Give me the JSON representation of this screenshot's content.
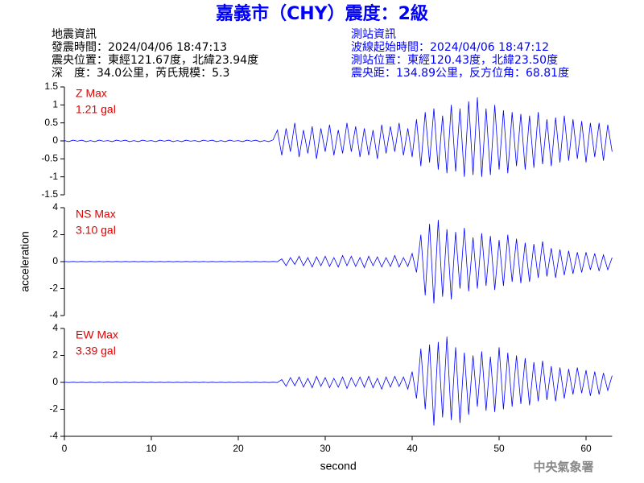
{
  "header": {
    "title": "嘉義市（CHY）震度：2級",
    "event": [
      "地震資訊",
      "發震時間：2024/04/06 18:47:13",
      "震央位置：東經121.67度，北緯23.94度",
      "深　度：34.0公里，芮氏規模：5.3"
    ],
    "station": [
      "測站資訊",
      "波線起始時間：2024/04/06 18:47:12",
      "測站位置：東經120.43度，北緯23.50度",
      "震央距：134.89公里，反方位角：68.81度"
    ],
    "footer": "中央氣象署"
  },
  "chart_data": [
    {
      "type": "line",
      "annotations": [
        "Z Max",
        "1.21 gal"
      ],
      "color": "#0000ff",
      "xlim": [
        0,
        63
      ],
      "ylim": [
        -1.5,
        1.5
      ],
      "yticks": [
        1.5,
        1,
        0.5,
        0,
        -0.5,
        -1,
        -1.5
      ],
      "x": [
        0,
        0.5,
        1,
        1.5,
        2,
        2.5,
        3,
        3.5,
        4,
        4.5,
        5,
        5.5,
        6,
        6.5,
        7,
        7.5,
        8,
        8.5,
        9,
        9.5,
        10,
        10.5,
        11,
        11.5,
        12,
        12.5,
        13,
        13.5,
        14,
        14.5,
        15,
        15.5,
        16,
        16.5,
        17,
        17.5,
        18,
        18.5,
        19,
        19.5,
        20,
        20.5,
        21,
        21.5,
        22,
        22.5,
        23,
        23.5,
        24,
        24.5,
        25,
        25.5,
        26,
        26.5,
        27,
        27.5,
        28,
        28.5,
        29,
        29.5,
        30,
        30.5,
        31,
        31.5,
        32,
        32.5,
        33,
        33.5,
        34,
        34.5,
        35,
        35.5,
        36,
        36.5,
        37,
        37.5,
        38,
        38.5,
        39,
        39.5,
        40,
        40.5,
        41,
        41.5,
        42,
        42.5,
        43,
        43.5,
        44,
        44.5,
        45,
        45.5,
        46,
        46.5,
        47,
        47.5,
        48,
        48.5,
        49,
        49.5,
        50,
        50.5,
        51,
        51.5,
        52,
        52.5,
        53,
        53.5,
        54,
        54.5,
        55,
        55.5,
        56,
        56.5,
        57,
        57.5,
        58,
        58.5,
        59,
        59.5,
        60,
        60.5,
        61,
        61.5,
        62,
        62.5,
        63
      ],
      "values": [
        0.01,
        -0.02,
        0.02,
        -0.01,
        0.02,
        -0.02,
        0.01,
        -0.02,
        0.02,
        -0.01,
        0.01,
        -0.02,
        0.02,
        -0.01,
        0.02,
        -0.02,
        0.01,
        -0.02,
        0.02,
        -0.01,
        0.01,
        -0.02,
        0.02,
        -0.01,
        0.02,
        -0.02,
        0.01,
        -0.02,
        0.02,
        -0.01,
        0.01,
        -0.02,
        0.02,
        -0.01,
        0.02,
        -0.02,
        0.01,
        -0.02,
        0.02,
        -0.01,
        0.01,
        -0.02,
        0.02,
        -0.01,
        0.02,
        -0.02,
        0.01,
        -0.02,
        0.03,
        0.3,
        -0.4,
        0.35,
        -0.3,
        0.5,
        -0.45,
        0.3,
        -0.35,
        0.4,
        -0.5,
        0.35,
        -0.3,
        0.45,
        -0.4,
        0.3,
        -0.35,
        0.5,
        -0.3,
        0.4,
        -0.45,
        0.35,
        -0.4,
        0.3,
        -0.5,
        0.45,
        -0.35,
        0.4,
        -0.3,
        0.5,
        -0.4,
        0.35,
        -0.45,
        0.6,
        -0.7,
        0.8,
        -0.6,
        0.9,
        -0.8,
        0.7,
        -0.9,
        1.0,
        -0.85,
        0.9,
        -1.0,
        1.1,
        -0.95,
        1.21,
        -1.0,
        0.9,
        -0.95,
        1.0,
        -0.8,
        0.85,
        -0.9,
        0.8,
        -0.7,
        0.75,
        -0.8,
        0.7,
        -0.75,
        0.8,
        -0.65,
        0.6,
        -0.7,
        0.65,
        -0.6,
        0.7,
        -0.55,
        0.6,
        -0.5,
        0.55,
        -0.6,
        0.5,
        -0.45,
        0.5,
        -0.55,
        0.45,
        -0.3
      ]
    },
    {
      "type": "line",
      "annotations": [
        "NS Max",
        "3.10 gal"
      ],
      "ylabel": "acceleration",
      "color": "#0000ff",
      "xlim": [
        0,
        63
      ],
      "ylim": [
        -4,
        4
      ],
      "yticks": [
        4,
        2,
        0,
        -2,
        -4
      ],
      "x": [
        0,
        0.5,
        1,
        1.5,
        2,
        2.5,
        3,
        3.5,
        4,
        4.5,
        5,
        5.5,
        6,
        6.5,
        7,
        7.5,
        8,
        8.5,
        9,
        9.5,
        10,
        10.5,
        11,
        11.5,
        12,
        12.5,
        13,
        13.5,
        14,
        14.5,
        15,
        15.5,
        16,
        16.5,
        17,
        17.5,
        18,
        18.5,
        19,
        19.5,
        20,
        20.5,
        21,
        21.5,
        22,
        22.5,
        23,
        23.5,
        24,
        24.5,
        25,
        25.5,
        26,
        26.5,
        27,
        27.5,
        28,
        28.5,
        29,
        29.5,
        30,
        30.5,
        31,
        31.5,
        32,
        32.5,
        33,
        33.5,
        34,
        34.5,
        35,
        35.5,
        36,
        36.5,
        37,
        37.5,
        38,
        38.5,
        39,
        39.5,
        40,
        40.5,
        41,
        41.5,
        42,
        42.5,
        43,
        43.5,
        44,
        44.5,
        45,
        45.5,
        46,
        46.5,
        47,
        47.5,
        48,
        48.5,
        49,
        49.5,
        50,
        50.5,
        51,
        51.5,
        52,
        52.5,
        53,
        53.5,
        54,
        54.5,
        55,
        55.5,
        56,
        56.5,
        57,
        57.5,
        58,
        58.5,
        59,
        59.5,
        60,
        60.5,
        61,
        61.5,
        62,
        62.5,
        63
      ],
      "values": [
        0.01,
        -0.01,
        0.01,
        -0.01,
        0.01,
        -0.01,
        0.01,
        -0.01,
        0.01,
        -0.01,
        0.01,
        -0.01,
        0.01,
        -0.01,
        0.01,
        -0.01,
        0.01,
        -0.01,
        0.01,
        -0.01,
        0.01,
        -0.01,
        0.01,
        -0.01,
        0.01,
        -0.01,
        0.01,
        -0.01,
        0.01,
        -0.01,
        0.01,
        -0.01,
        0.01,
        -0.01,
        0.01,
        -0.01,
        0.01,
        -0.01,
        0.01,
        -0.01,
        0.01,
        -0.01,
        0.01,
        -0.01,
        0.01,
        -0.01,
        0.01,
        -0.01,
        0.01,
        -0.01,
        0.2,
        -0.3,
        0.3,
        -0.2,
        0.4,
        -0.3,
        0.3,
        -0.4,
        0.35,
        -0.3,
        0.4,
        -0.35,
        0.3,
        -0.4,
        0.45,
        -0.3,
        0.4,
        -0.35,
        0.3,
        -0.45,
        0.4,
        -0.3,
        0.35,
        -0.4,
        0.3,
        -0.35,
        0.45,
        -0.4,
        0.3,
        -0.35,
        0.6,
        -0.8,
        2.0,
        -2.5,
        2.8,
        -3.1,
        3.1,
        -2.6,
        2.4,
        -2.8,
        2.2,
        -2.0,
        2.5,
        -2.2,
        1.8,
        -2.0,
        2.1,
        -1.8,
        1.9,
        -2.1,
        1.6,
        -1.8,
        2.0,
        -1.5,
        1.7,
        -1.6,
        1.4,
        -1.5,
        1.3,
        -1.2,
        1.5,
        -1.1,
        1.0,
        -1.2,
        0.9,
        -1.0,
        0.8,
        -0.9,
        0.7,
        -0.8,
        0.7,
        -0.6,
        0.6,
        -0.7,
        0.5,
        -0.6,
        0.3
      ]
    },
    {
      "type": "line",
      "annotations": [
        "EW Max",
        "3.39 gal"
      ],
      "xlabel": "second",
      "color": "#0000ff",
      "xlim": [
        0,
        63
      ],
      "ylim": [
        -4,
        4
      ],
      "yticks": [
        4,
        2,
        0,
        -2,
        -4
      ],
      "xticks": [
        0,
        10,
        20,
        30,
        40,
        50,
        60
      ],
      "x": [
        0,
        0.5,
        1,
        1.5,
        2,
        2.5,
        3,
        3.5,
        4,
        4.5,
        5,
        5.5,
        6,
        6.5,
        7,
        7.5,
        8,
        8.5,
        9,
        9.5,
        10,
        10.5,
        11,
        11.5,
        12,
        12.5,
        13,
        13.5,
        14,
        14.5,
        15,
        15.5,
        16,
        16.5,
        17,
        17.5,
        18,
        18.5,
        19,
        19.5,
        20,
        20.5,
        21,
        21.5,
        22,
        22.5,
        23,
        23.5,
        24,
        24.5,
        25,
        25.5,
        26,
        26.5,
        27,
        27.5,
        28,
        28.5,
        29,
        29.5,
        30,
        30.5,
        31,
        31.5,
        32,
        32.5,
        33,
        33.5,
        34,
        34.5,
        35,
        35.5,
        36,
        36.5,
        37,
        37.5,
        38,
        38.5,
        39,
        39.5,
        40,
        40.5,
        41,
        41.5,
        42,
        42.5,
        43,
        43.5,
        44,
        44.5,
        45,
        45.5,
        46,
        46.5,
        47,
        47.5,
        48,
        48.5,
        49,
        49.5,
        50,
        50.5,
        51,
        51.5,
        52,
        52.5,
        53,
        53.5,
        54,
        54.5,
        55,
        55.5,
        56,
        56.5,
        57,
        57.5,
        58,
        58.5,
        59,
        59.5,
        60,
        60.5,
        61,
        61.5,
        62,
        62.5,
        63
      ],
      "values": [
        0.01,
        -0.01,
        0.01,
        -0.01,
        0.01,
        -0.01,
        0.01,
        -0.01,
        0.01,
        -0.01,
        0.01,
        -0.01,
        0.01,
        -0.01,
        0.01,
        -0.01,
        0.01,
        -0.01,
        0.01,
        -0.01,
        0.01,
        -0.01,
        0.01,
        -0.01,
        0.01,
        -0.01,
        0.01,
        -0.01,
        0.01,
        -0.01,
        0.01,
        -0.01,
        0.01,
        -0.01,
        0.01,
        -0.01,
        0.01,
        -0.01,
        0.01,
        -0.01,
        0.01,
        -0.01,
        0.01,
        -0.01,
        0.01,
        -0.01,
        0.01,
        -0.01,
        0.01,
        -0.01,
        0.2,
        -0.3,
        0.35,
        -0.25,
        0.4,
        -0.35,
        0.3,
        -0.4,
        0.45,
        -0.3,
        0.35,
        -0.4,
        0.3,
        -0.35,
        0.4,
        -0.45,
        0.35,
        -0.3,
        0.4,
        -0.35,
        0.45,
        -0.4,
        0.3,
        -0.5,
        0.4,
        -0.35,
        0.45,
        -0.3,
        0.4,
        -0.5,
        0.8,
        -1.2,
        2.5,
        -2.0,
        2.8,
        -3.2,
        3.0,
        -2.6,
        3.39,
        -2.8,
        2.6,
        -3.0,
        2.2,
        -2.4,
        2.0,
        -1.8,
        2.3,
        -2.1,
        1.9,
        -2.2,
        2.6,
        -2.0,
        2.2,
        -1.8,
        2.0,
        -1.6,
        1.8,
        -1.7,
        1.5,
        -1.4,
        1.6,
        -1.3,
        1.2,
        -1.4,
        1.1,
        -1.2,
        1.0,
        -0.9,
        1.1,
        -0.8,
        0.9,
        -1.0,
        0.8,
        -0.9,
        0.7,
        -0.6,
        0.5
      ]
    }
  ]
}
